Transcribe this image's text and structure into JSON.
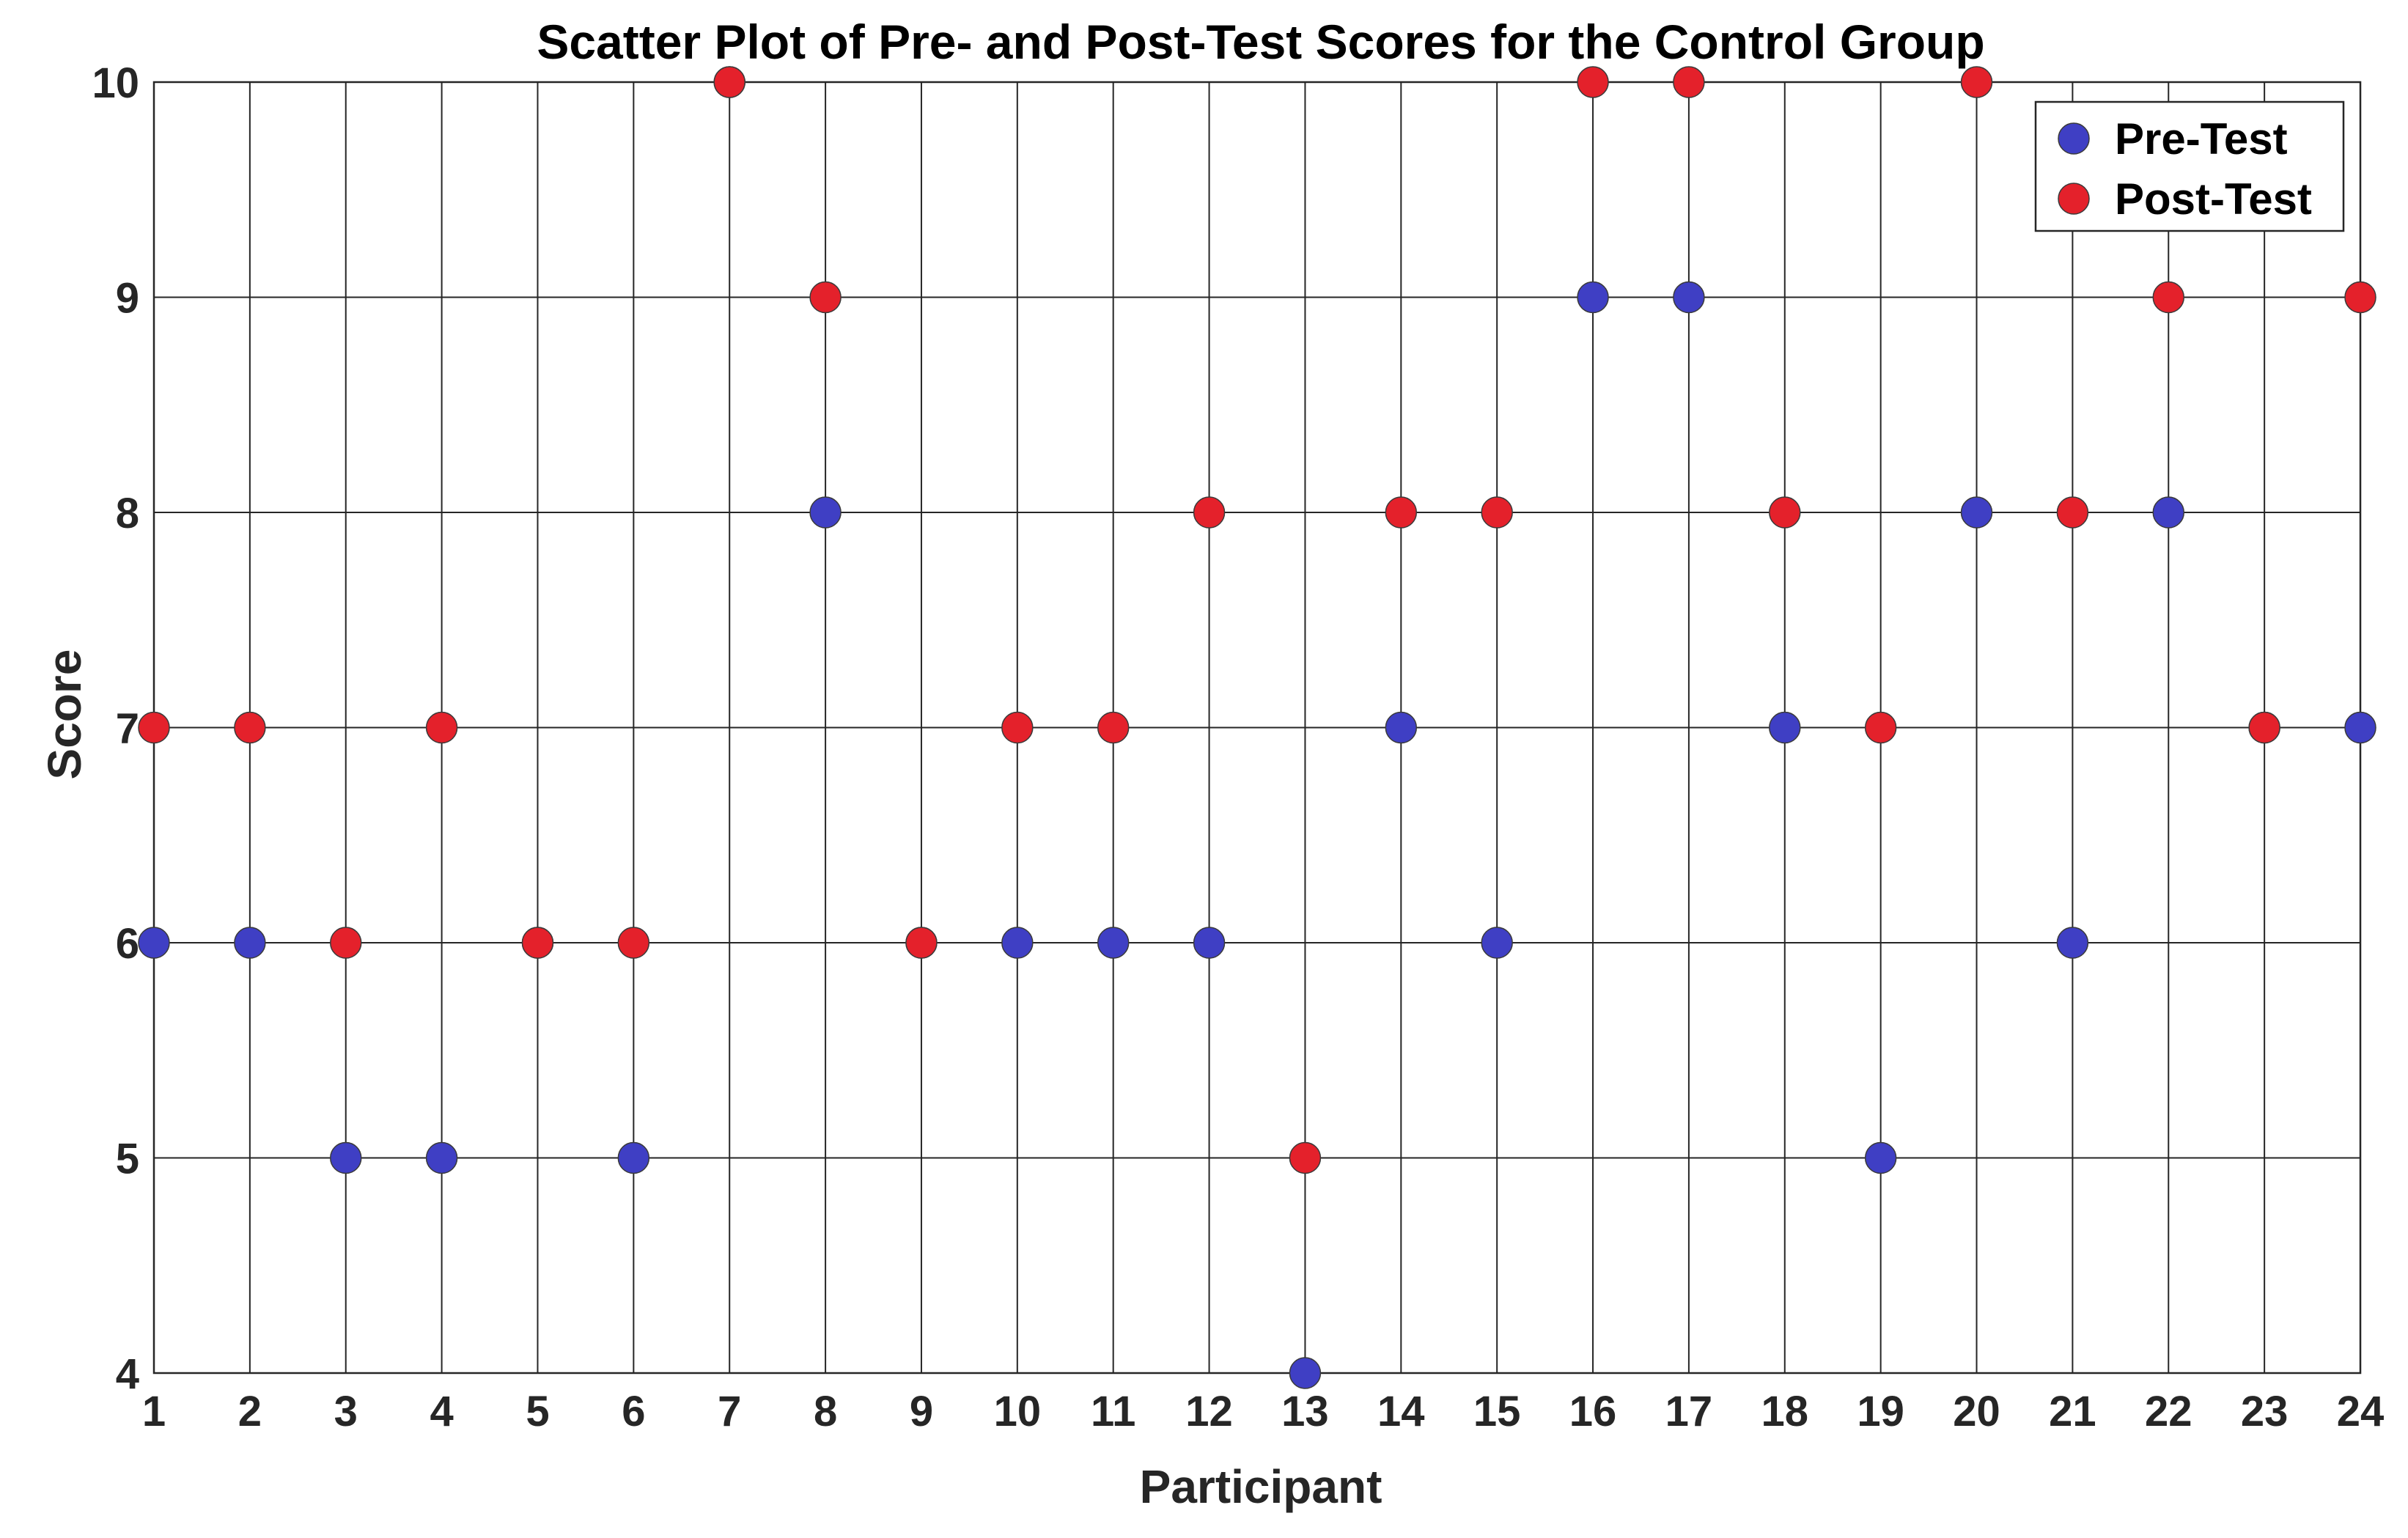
{
  "chart_data": {
    "type": "scatter",
    "title": "Scatter Plot of Pre- and Post-Test Scores for the Control Group",
    "xlabel": "Participant",
    "ylabel": "Score",
    "xlim": [
      1,
      24
    ],
    "ylim": [
      4,
      10
    ],
    "x_ticks": [
      1,
      2,
      3,
      4,
      5,
      6,
      7,
      8,
      9,
      10,
      11,
      12,
      13,
      14,
      15,
      16,
      17,
      18,
      19,
      20,
      21,
      22,
      23,
      24
    ],
    "y_ticks": [
      4,
      5,
      6,
      7,
      8,
      9,
      10
    ],
    "grid": true,
    "legend_position": "top-right",
    "x": [
      1,
      2,
      3,
      4,
      5,
      6,
      7,
      8,
      9,
      10,
      11,
      12,
      13,
      14,
      15,
      16,
      17,
      18,
      19,
      20,
      21,
      22,
      23,
      24
    ],
    "series": [
      {
        "name": "Pre-Test",
        "color": "#3f3fc4",
        "values": [
          6,
          6,
          5,
          5,
          6,
          5,
          10,
          8,
          6,
          6,
          6,
          6,
          4,
          7,
          6,
          9,
          9,
          7,
          5,
          8,
          6,
          8,
          7,
          7
        ]
      },
      {
        "name": "Post-Test",
        "color": "#e4212b",
        "values": [
          7,
          7,
          6,
          7,
          6,
          6,
          10,
          9,
          6,
          7,
          7,
          8,
          5,
          8,
          8,
          10,
          10,
          8,
          7,
          10,
          8,
          9,
          7,
          9
        ]
      }
    ]
  }
}
